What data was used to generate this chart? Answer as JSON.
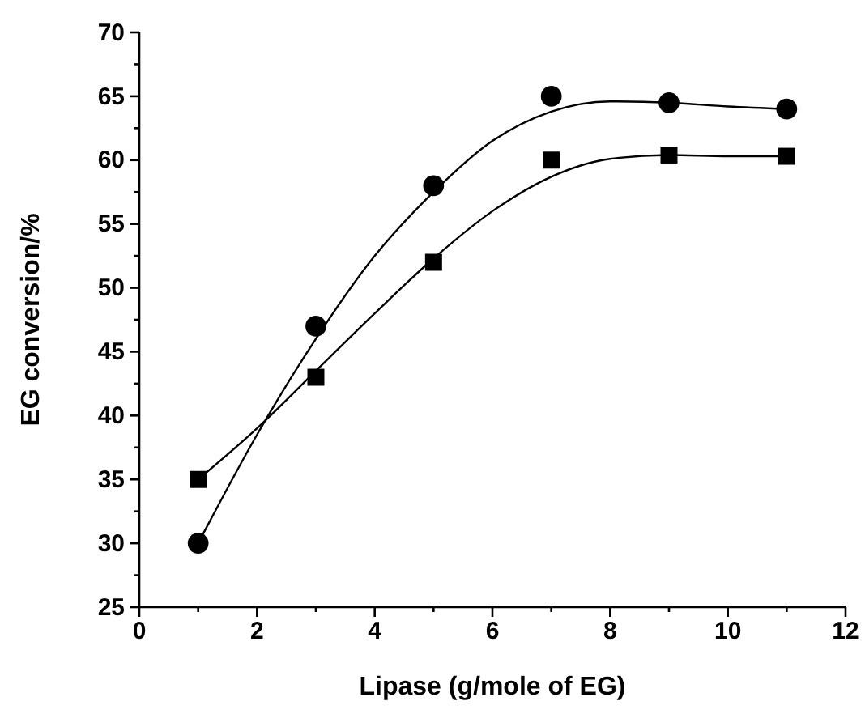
{
  "chart_data": {
    "type": "scatter",
    "xlabel": "Lipase (g/mole of EG)",
    "ylabel": "EG conversion/%",
    "xlim": [
      0,
      12
    ],
    "ylim": [
      25,
      70
    ],
    "xticks": [
      0,
      {
        "value": 1,
        "label": null
      },
      2,
      {
        "value": 3,
        "label": null
      },
      4,
      {
        "value": 5,
        "label": null
      },
      6,
      {
        "value": 7,
        "label": null
      },
      8,
      {
        "value": 9,
        "label": null
      },
      10,
      {
        "value": 11,
        "label": null
      },
      12
    ],
    "yticks": [
      25,
      {
        "value": 27.5,
        "label": null
      },
      30,
      {
        "value": 32.5,
        "label": null
      },
      35,
      {
        "value": 37.5,
        "label": null
      },
      40,
      {
        "value": 42.5,
        "label": null
      },
      45,
      {
        "value": 47.5,
        "label": null
      },
      50,
      {
        "value": 52.5,
        "label": null
      },
      55,
      {
        "value": 57.5,
        "label": null
      },
      60,
      {
        "value": 62.5,
        "label": null
      },
      65,
      {
        "value": 67.5,
        "label": null
      },
      70
    ],
    "grid": false,
    "series": [
      {
        "marker": "circle",
        "color": "#000000",
        "x": [
          1,
          3,
          5,
          7,
          9,
          11
        ],
        "values": [
          30,
          47,
          58,
          65,
          64.5,
          64
        ]
      },
      {
        "marker": "square",
        "color": "#000000",
        "x": [
          1,
          3,
          5,
          7,
          9,
          11
        ],
        "values": [
          35,
          43,
          52,
          60,
          60.4,
          60.3
        ]
      },
      {
        "type": "line",
        "marker": "none",
        "line_style": "solid",
        "color": "#000000",
        "x": [
          1,
          2,
          3,
          4,
          5,
          6,
          7,
          8,
          9,
          10,
          11
        ],
        "values": [
          30,
          38.5,
          46,
          52.5,
          57.5,
          61.5,
          63.8,
          64.6,
          64.5,
          64.2,
          64
        ]
      },
      {
        "type": "line",
        "marker": "none",
        "line_style": "solid",
        "color": "#000000",
        "x": [
          1,
          2,
          3,
          4,
          5,
          6,
          7,
          8,
          9,
          10,
          11
        ],
        "values": [
          35,
          39,
          43.5,
          48,
          52.3,
          56,
          58.7,
          60.1,
          60.4,
          60.3,
          60.3
        ]
      }
    ]
  }
}
